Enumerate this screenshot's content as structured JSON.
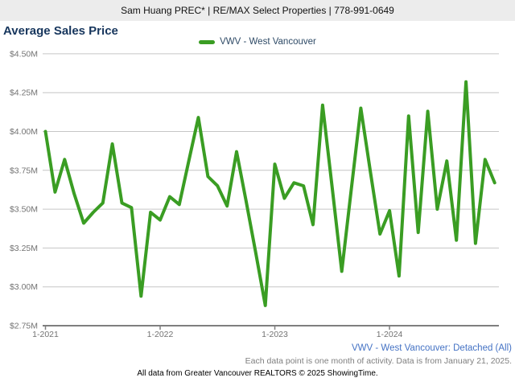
{
  "header": {
    "text": "Sam Huang PREC* | RE/MAX Select Properties | 778-991-0649"
  },
  "title": "Average Sales Price",
  "legend": {
    "label": "VWV - West Vancouver"
  },
  "footer": {
    "series_link": "VWV - West Vancouver: Detached (All)",
    "note": "Each data point is one month of activity. Data is from January 21, 2025.",
    "attribution": "All data from Greater Vancouver REALTORS © 2025 ShowingTime."
  },
  "colors": {
    "accent_green": "#3a9d23",
    "title_navy": "#17365d",
    "legend_text": "#2e4a66",
    "link_blue": "#4472c4",
    "note_gray": "#7f7f7f",
    "grid_gray": "#c6c6c6",
    "axis_gray": "#7f7f7f",
    "tick_label_gray": "#737373",
    "header_bg": "#ececec"
  },
  "chart_data": {
    "type": "line",
    "title": "Average Sales Price",
    "grid": true,
    "legend_position": "top-center",
    "ylabel": "",
    "xlabel": "",
    "ylim": [
      2.75,
      4.5
    ],
    "y_tick_step": 0.25,
    "y_tick_labels": [
      "$4.50M",
      "$4.25M",
      "$4.00M",
      "$3.75M",
      "$3.50M",
      "$3.25M",
      "$3.00M",
      "$2.75M"
    ],
    "x_tick_labels": [
      "1-2021",
      "1-2022",
      "1-2023",
      "1-2024"
    ],
    "categories": [
      "1-2021",
      "2-2021",
      "3-2021",
      "4-2021",
      "5-2021",
      "6-2021",
      "7-2021",
      "8-2021",
      "9-2021",
      "10-2021",
      "11-2021",
      "12-2021",
      "1-2022",
      "2-2022",
      "3-2022",
      "4-2022",
      "5-2022",
      "6-2022",
      "7-2022",
      "8-2022",
      "9-2022",
      "10-2022",
      "11-2022",
      "12-2022",
      "1-2023",
      "2-2023",
      "3-2023",
      "4-2023",
      "5-2023",
      "6-2023",
      "7-2023",
      "8-2023",
      "9-2023",
      "10-2023",
      "11-2023",
      "12-2023",
      "1-2024",
      "2-2024",
      "3-2024",
      "4-2024",
      "5-2024",
      "6-2024",
      "7-2024",
      "8-2024",
      "9-2024",
      "10-2024",
      "11-2024",
      "12-2024"
    ],
    "series": [
      {
        "name": "VWV - West Vancouver",
        "unit": "millions USD/CAD ($M)",
        "values": [
          4.0,
          3.61,
          3.82,
          3.6,
          3.41,
          3.48,
          3.54,
          3.92,
          3.54,
          3.51,
          2.94,
          3.48,
          3.43,
          3.58,
          3.53,
          3.81,
          4.09,
          3.71,
          3.65,
          3.52,
          3.87,
          3.55,
          3.22,
          2.88,
          3.79,
          3.57,
          3.67,
          3.65,
          3.4,
          4.17,
          3.64,
          3.1,
          3.63,
          4.15,
          3.74,
          3.34,
          3.49,
          3.07,
          4.1,
          3.35,
          4.13,
          3.5,
          3.81,
          3.3,
          4.32,
          3.28,
          3.82,
          3.67
        ]
      }
    ]
  }
}
